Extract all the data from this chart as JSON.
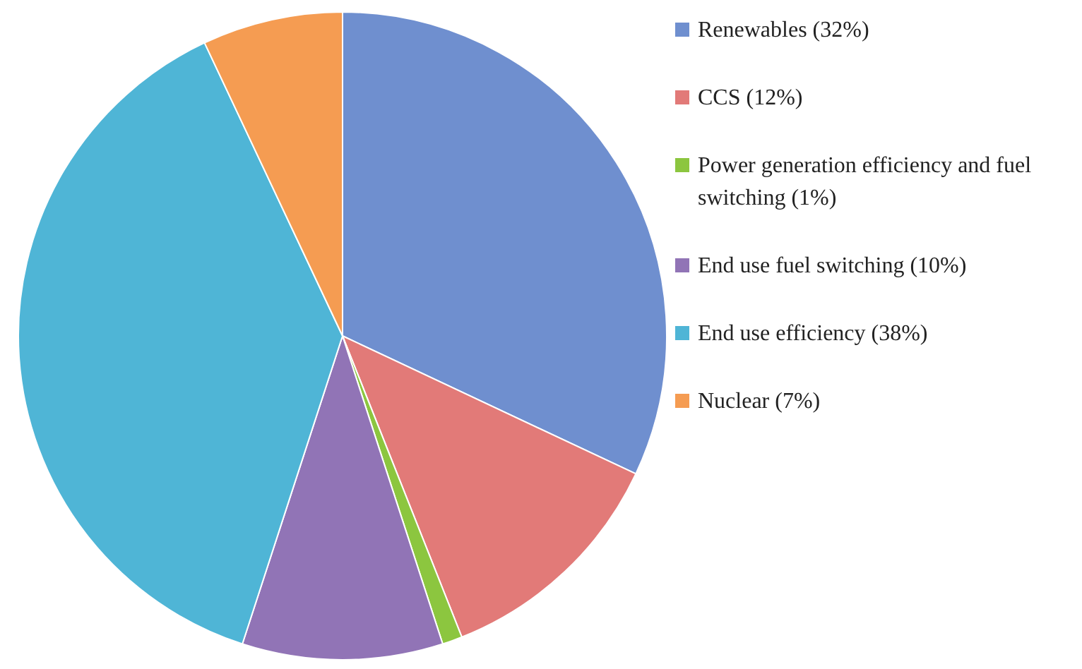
{
  "chart_data": {
    "type": "pie",
    "categories": [
      "Renewables (32%)",
      "CCS (12%)",
      "Power generation efficiency and fuel switching (1%)",
      "End use fuel switching (10%)",
      "End use efficiency (38%)",
      "Nuclear (7%)"
    ],
    "values": [
      32,
      12,
      1,
      10,
      38,
      7
    ],
    "colors": [
      "#6f8fcf",
      "#e27a78",
      "#8cc63f",
      "#9174b6",
      "#4fb5d6",
      "#f59c52"
    ],
    "legend": "right"
  }
}
